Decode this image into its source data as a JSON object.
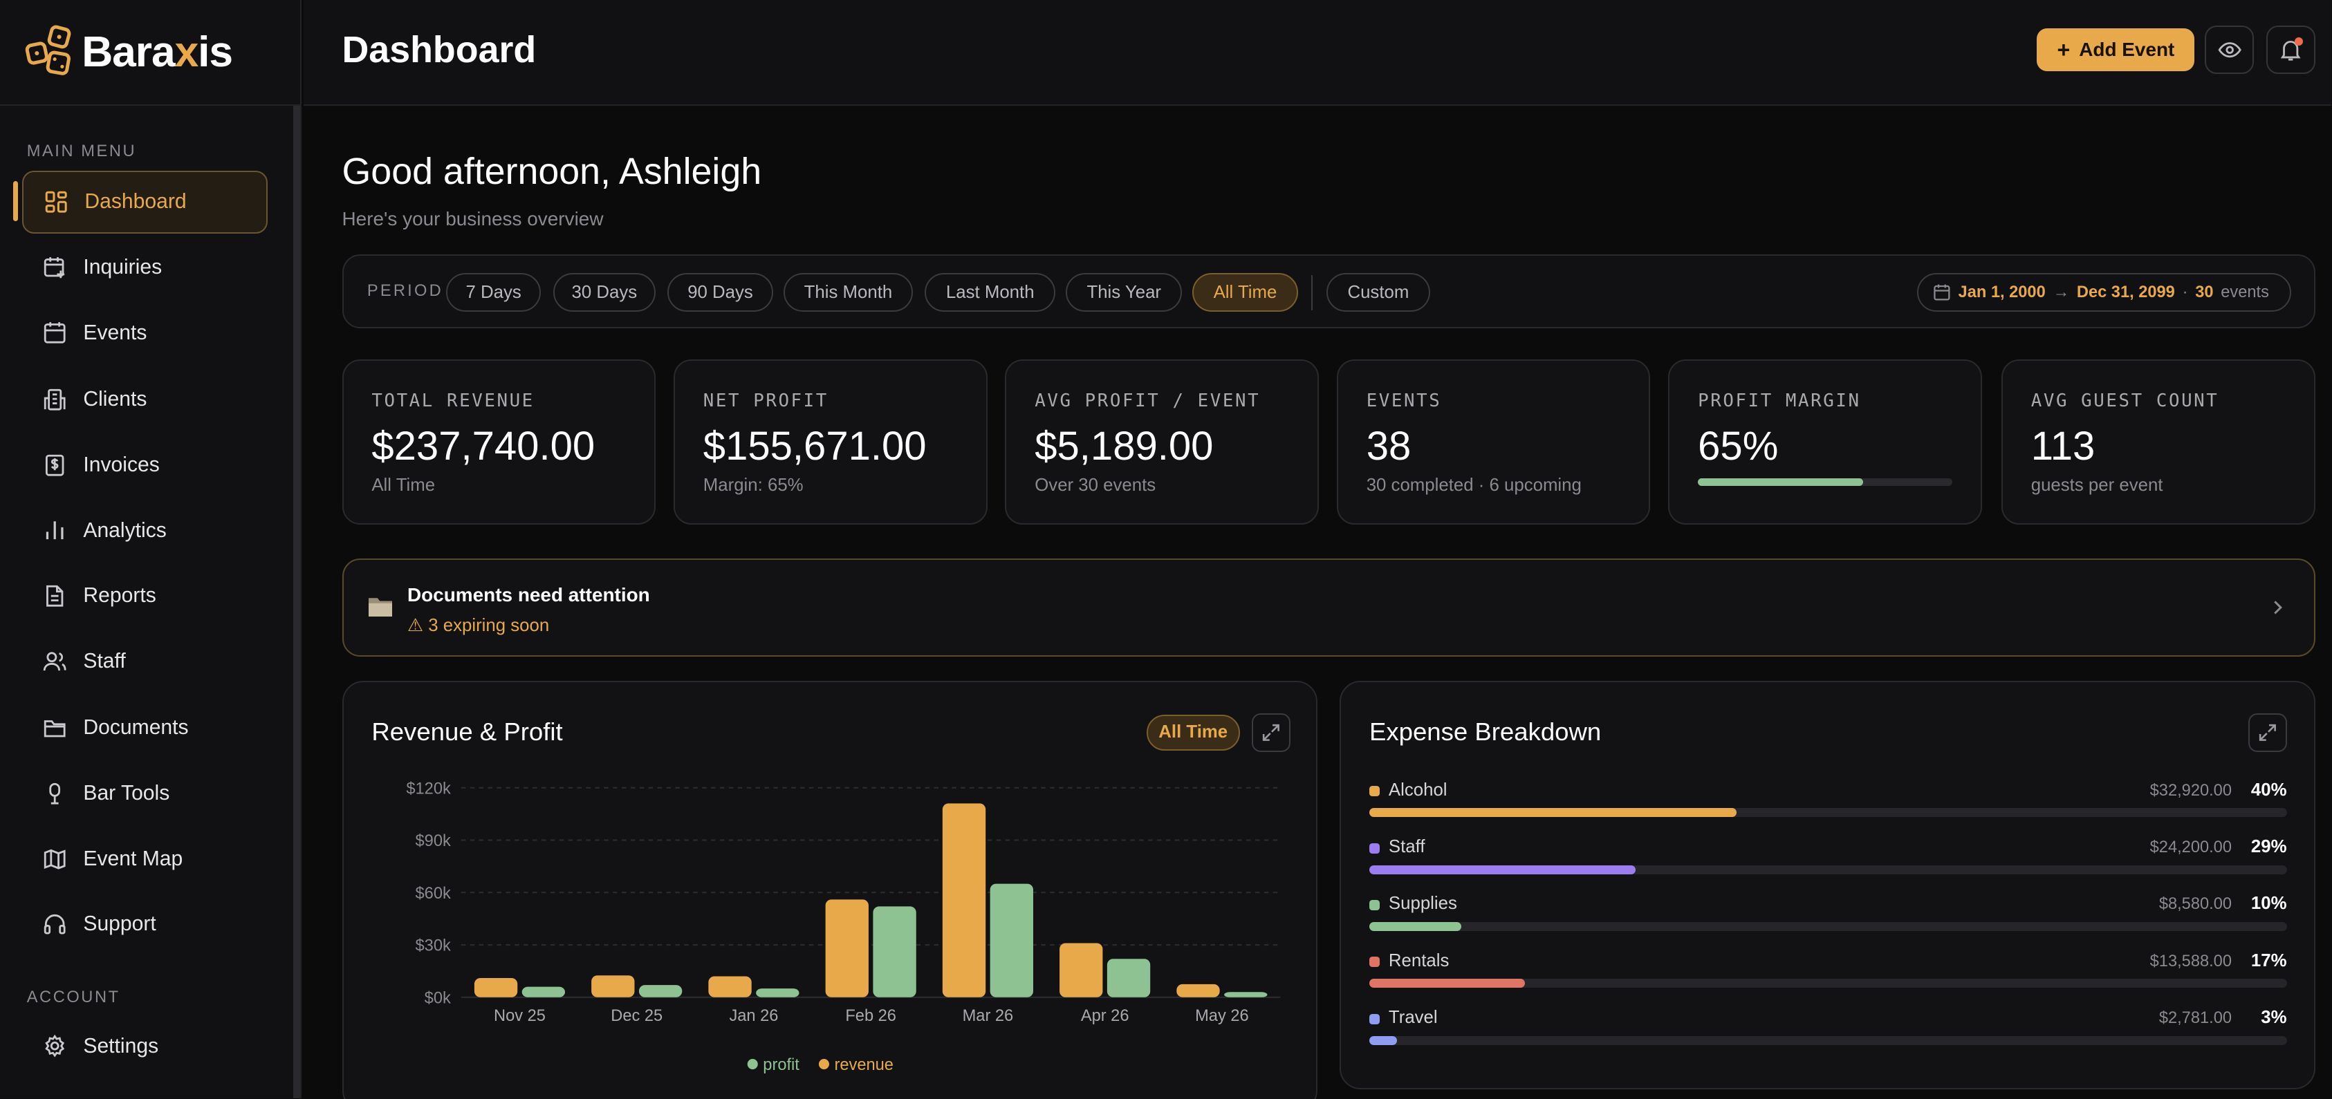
{
  "brand": {
    "name_prefix": "Bara",
    "name_x": "x",
    "name_suffix": "is"
  },
  "sidebar": {
    "main_menu_label": "MAIN MENU",
    "account_label": "ACCOUNT",
    "items": [
      {
        "label": "Dashboard",
        "icon": "grid-icon",
        "active": true
      },
      {
        "label": "Inquiries",
        "icon": "calendar-plus-icon"
      },
      {
        "label": "Events",
        "icon": "calendar-icon"
      },
      {
        "label": "Clients",
        "icon": "building-icon"
      },
      {
        "label": "Invoices",
        "icon": "dollar-receipt-icon"
      },
      {
        "label": "Analytics",
        "icon": "bar-chart-icon"
      },
      {
        "label": "Reports",
        "icon": "document-icon"
      },
      {
        "label": "Staff",
        "icon": "users-icon"
      },
      {
        "label": "Documents",
        "icon": "folder-icon"
      },
      {
        "label": "Bar Tools",
        "icon": "microphone-icon"
      },
      {
        "label": "Event Map",
        "icon": "map-icon"
      },
      {
        "label": "Support",
        "icon": "headset-icon"
      }
    ],
    "settings": {
      "label": "Settings",
      "icon": "gear-icon"
    }
  },
  "header": {
    "title": "Dashboard",
    "add_label": "Add Event"
  },
  "greeting": {
    "title": "Good afternoon, Ashleigh",
    "subtitle": "Here's your business overview"
  },
  "period": {
    "label": "PERIOD",
    "options": [
      "7 Days",
      "30 Days",
      "90 Days",
      "This Month",
      "Last Month",
      "This Year",
      "All Time"
    ],
    "custom": "Custom",
    "selected": "All Time",
    "range_start": "Jan 1, 2000",
    "range_arrow": "→",
    "range_end": "Dec 31, 2099",
    "range_sep": "·",
    "event_count": "30",
    "event_word": "events"
  },
  "stats": [
    {
      "label": "TOTAL REVENUE",
      "value": "$237,740.00",
      "sub": "All Time"
    },
    {
      "label": "NET PROFIT",
      "value": "$155,671.00",
      "sub": "Margin: 65%"
    },
    {
      "label": "AVG PROFIT / EVENT",
      "value": "$5,189.00",
      "sub": "Over 30 events"
    },
    {
      "label": "EVENTS",
      "value": "38",
      "sub": "30 completed · 6 upcoming"
    },
    {
      "label": "PROFIT MARGIN",
      "value": "65%",
      "progress": 0.65
    },
    {
      "label": "AVG GUEST COUNT",
      "value": "113",
      "sub": "guests per event"
    }
  ],
  "alert": {
    "title": "Documents need attention",
    "warn": "⚠",
    "sub": "3 expiring soon"
  },
  "revenue_card": {
    "title": "Revenue & Profit",
    "pill": "All Time"
  },
  "expense_card": {
    "title": "Expense Breakdown"
  },
  "colors": {
    "accent": "#e8a94a",
    "profit": "#8ec293",
    "revenue": "#e8a94a"
  },
  "chart_data": {
    "type": "bar",
    "title": "Revenue & Profit",
    "categories": [
      "Nov 25",
      "Dec 25",
      "Jan 26",
      "Feb 26",
      "Mar 26",
      "Apr 26",
      "May 26"
    ],
    "series": [
      {
        "name": "revenue",
        "color": "#e8a94a",
        "values": [
          11000,
          12500,
          12000,
          56000,
          111000,
          31000,
          7500
        ]
      },
      {
        "name": "profit",
        "color": "#8ec293",
        "values": [
          6000,
          7000,
          5000,
          52000,
          65000,
          22000,
          3000
        ]
      }
    ],
    "yticks": [
      "$0k",
      "$30k",
      "$60k",
      "$90k",
      "$120k"
    ],
    "ylim": [
      0,
      120000
    ],
    "legend": [
      "profit",
      "revenue"
    ],
    "legend_position": "bottom",
    "grid": true
  },
  "expenses": [
    {
      "name": "Alcohol",
      "amount": "$32,920.00",
      "pct": "40%",
      "frac": 0.4,
      "color": "#e8a94a"
    },
    {
      "name": "Staff",
      "amount": "$24,200.00",
      "pct": "29%",
      "frac": 0.29,
      "color": "#9c7df0"
    },
    {
      "name": "Supplies",
      "amount": "$8,580.00",
      "pct": "10%",
      "frac": 0.1,
      "color": "#8ec293"
    },
    {
      "name": "Rentals",
      "amount": "$13,588.00",
      "pct": "17%",
      "frac": 0.17,
      "color": "#e07566"
    },
    {
      "name": "Travel",
      "amount": "$2,781.00",
      "pct": "3%",
      "frac": 0.03,
      "color": "#8f9cf2"
    }
  ]
}
